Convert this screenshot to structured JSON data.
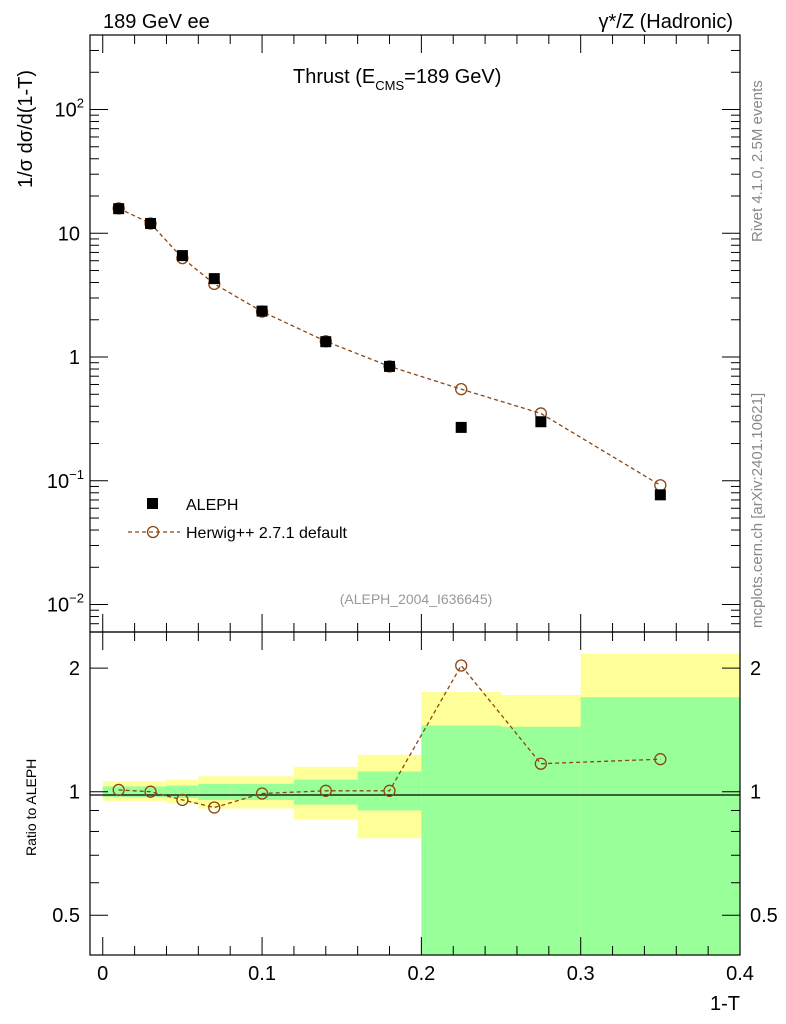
{
  "header": {
    "left": "189 GeV ee",
    "right": "γ*/Z (Hadronic)"
  },
  "side_labels": {
    "rivet": "Rivet 4.1.0,  2.5M events",
    "mcplots": "mcplots.cern.ch [arXiv:2401.10621]"
  },
  "colors": {
    "data": "#000000",
    "mc": "#8b4513",
    "band_outer": "#ffff99",
    "band_inner": "#99ff99"
  },
  "chart_data": [
    {
      "type": "scatter",
      "title_main": "Thrust (E",
      "title_sub": "CMS",
      "title_tail": "=189 GeV)",
      "analysis_id": "(ALEPH_2004_I636645)",
      "ylabel": "1/σ  dσ/d(1-T)",
      "yscale": "log",
      "ylim": [
        0.006,
        400
      ],
      "xlim": [
        -0.008,
        0.4
      ],
      "yticks": [
        {
          "value": 100,
          "base": "10",
          "exp": "2"
        },
        {
          "value": 10,
          "base": "10",
          "exp": ""
        },
        {
          "value": 1,
          "base": "1",
          "exp": ""
        },
        {
          "value": 0.1,
          "base": "10",
          "exp": "−1"
        },
        {
          "value": 0.01,
          "base": "10",
          "exp": "−2"
        }
      ],
      "legend": {
        "position": "bottom-left",
        "data_label": "ALEPH",
        "mc_label": "Herwig++ 2.7.1 default"
      },
      "series": [
        {
          "name": "ALEPH",
          "marker": "filled-square",
          "x": [
            0.01,
            0.03,
            0.05,
            0.07,
            0.1,
            0.14,
            0.18,
            0.225,
            0.275,
            0.35
          ],
          "values": [
            15.8,
            12.0,
            6.6,
            4.3,
            2.35,
            1.33,
            0.84,
            0.27,
            0.3,
            0.077
          ]
        },
        {
          "name": "Herwig++ 2.7.1 default",
          "marker": "open-circle-dashed",
          "x": [
            0.01,
            0.03,
            0.05,
            0.07,
            0.1,
            0.14,
            0.18,
            0.225,
            0.275,
            0.35
          ],
          "values": [
            15.9,
            12.0,
            6.3,
            3.9,
            2.33,
            1.34,
            0.84,
            0.55,
            0.35,
            0.092
          ]
        }
      ]
    },
    {
      "type": "line",
      "ylabel": "Ratio to ALEPH",
      "xlabel": "1-T",
      "yscale": "log",
      "ylim": [
        0.4,
        2.45
      ],
      "xlim": [
        -0.008,
        0.4
      ],
      "yticks": [
        {
          "value": 2,
          "label": "2"
        },
        {
          "value": 1,
          "label": "1"
        },
        {
          "value": 0.5,
          "label": "0.5"
        }
      ],
      "xticks": [
        {
          "value": 0,
          "label": "0"
        },
        {
          "value": 0.1,
          "label": "0.1"
        },
        {
          "value": 0.2,
          "label": "0.2"
        },
        {
          "value": 0.3,
          "label": "0.3"
        },
        {
          "value": 0.4,
          "label": "0.4"
        }
      ],
      "bins": [
        {
          "lo": 0.0,
          "hi": 0.02,
          "inner": [
            0.97,
            1.03
          ],
          "outer": [
            0.95,
            1.06
          ]
        },
        {
          "lo": 0.02,
          "hi": 0.04,
          "inner": [
            0.97,
            1.03
          ],
          "outer": [
            0.95,
            1.06
          ]
        },
        {
          "lo": 0.04,
          "hi": 0.06,
          "inner": [
            0.965,
            1.035
          ],
          "outer": [
            0.935,
            1.07
          ]
        },
        {
          "lo": 0.06,
          "hi": 0.08,
          "inner": [
            0.955,
            1.045
          ],
          "outer": [
            0.91,
            1.09
          ]
        },
        {
          "lo": 0.08,
          "hi": 0.12,
          "inner": [
            0.955,
            1.045
          ],
          "outer": [
            0.91,
            1.09
          ]
        },
        {
          "lo": 0.12,
          "hi": 0.16,
          "inner": [
            0.93,
            1.07
          ],
          "outer": [
            0.855,
            1.15
          ]
        },
        {
          "lo": 0.16,
          "hi": 0.2,
          "inner": [
            0.9,
            1.12
          ],
          "outer": [
            0.77,
            1.23
          ]
        },
        {
          "lo": 0.2,
          "hi": 0.25,
          "inner": [
            0.4,
            1.45
          ],
          "outer": [
            0.69,
            1.75
          ]
        },
        {
          "lo": 0.25,
          "hi": 0.3,
          "inner": [
            0.4,
            1.44
          ],
          "outer": [
            0.7,
            1.72
          ]
        },
        {
          "lo": 0.3,
          "hi": 0.4,
          "inner": [
            0.4,
            1.7
          ],
          "outer": [
            0.4,
            2.17
          ]
        }
      ],
      "series": [
        {
          "name": "Herwig++ 2.7.1 default",
          "x": [
            0.01,
            0.03,
            0.05,
            0.07,
            0.1,
            0.14,
            0.18,
            0.225,
            0.275,
            0.35
          ],
          "values": [
            1.01,
            1.0,
            0.955,
            0.915,
            0.99,
            1.005,
            1.005,
            2.03,
            1.17,
            1.2
          ]
        }
      ]
    }
  ]
}
